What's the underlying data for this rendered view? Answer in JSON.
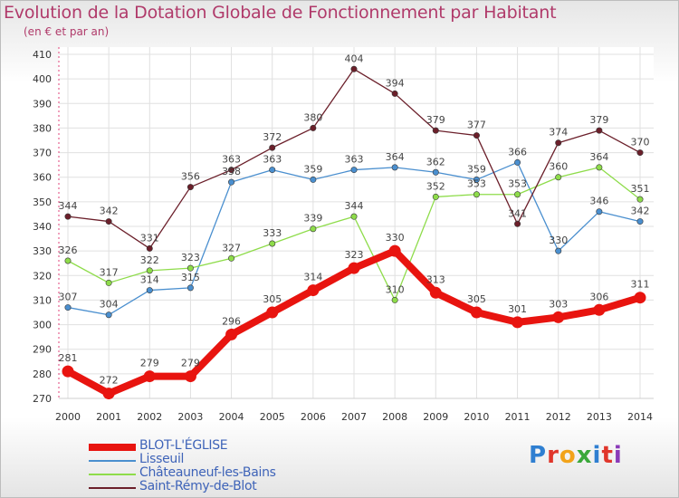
{
  "header": {
    "title": "Evolution de la Dotation Globale de Fonctionnement par Habitant",
    "subtitle": "(en € et par an)"
  },
  "logo": {
    "text": "Proxiti"
  },
  "colors": {
    "title": "#b03a6a",
    "legend_text": "#3e63b8",
    "axis_text": "#333333",
    "grid": "#e0e0e0"
  },
  "chart_data": {
    "type": "line",
    "title": "Evolution de la Dotation Globale de Fonctionnement par Habitant",
    "subtitle": "(en € et par an)",
    "xlabel": "",
    "ylabel": "",
    "x": [
      2000,
      2001,
      2002,
      2003,
      2004,
      2005,
      2006,
      2007,
      2008,
      2009,
      2010,
      2011,
      2012,
      2013,
      2014
    ],
    "ylim": [
      270,
      410
    ],
    "yticks": [
      270,
      280,
      290,
      300,
      310,
      320,
      330,
      340,
      350,
      360,
      370,
      380,
      390,
      400,
      410
    ],
    "grid": true,
    "legend_position": "bottom-left",
    "series": [
      {
        "name": "BLOT-L'ÉGLISE",
        "color": "#e8140f",
        "highlight": true,
        "values": [
          281,
          272,
          279,
          279,
          296,
          305,
          314,
          323,
          330,
          313,
          305,
          301,
          303,
          306,
          311
        ]
      },
      {
        "name": "Lisseuil",
        "color": "#4a8fcf",
        "highlight": false,
        "values": [
          307,
          304,
          314,
          315,
          358,
          363,
          359,
          363,
          364,
          362,
          359,
          366,
          330,
          346,
          342
        ]
      },
      {
        "name": "Châteauneuf-les-Bains",
        "color": "#8edc4a",
        "highlight": false,
        "values": [
          326,
          317,
          322,
          323,
          327,
          333,
          339,
          344,
          310,
          352,
          353,
          353,
          360,
          364,
          351
        ]
      },
      {
        "name": "Saint-Rémy-de-Blot",
        "color": "#6b1f2a",
        "highlight": false,
        "values": [
          344,
          342,
          331,
          356,
          363,
          372,
          380,
          404,
          394,
          379,
          377,
          341,
          374,
          379,
          370
        ]
      }
    ]
  }
}
